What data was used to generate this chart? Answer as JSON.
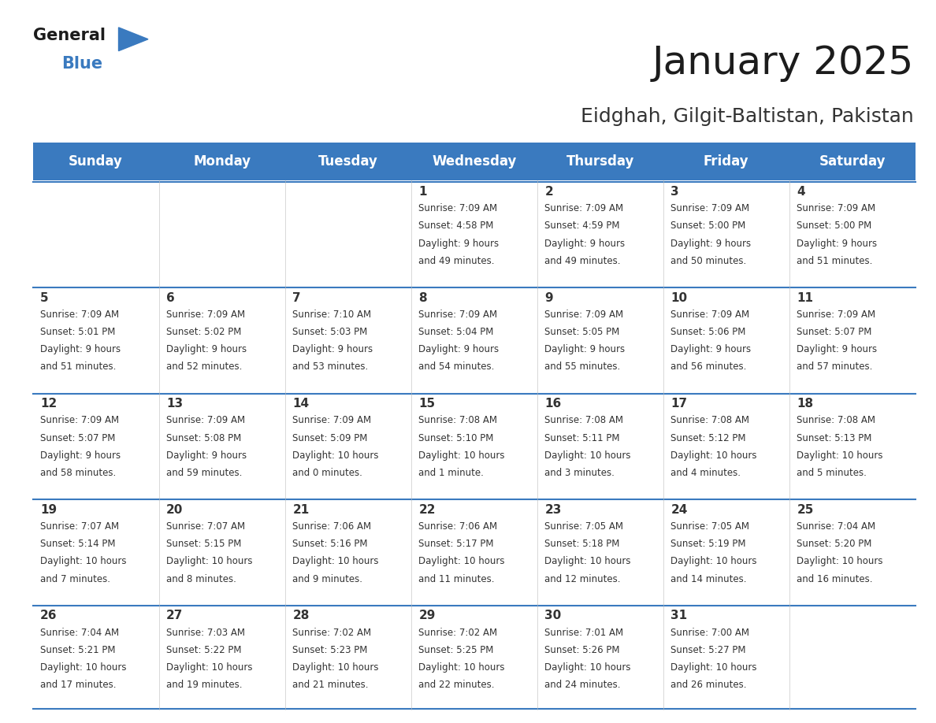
{
  "title": "January 2025",
  "subtitle": "Eidghah, Gilgit-Baltistan, Pakistan",
  "header_color": "#3a7abf",
  "header_text_color": "#ffffff",
  "cell_bg_color": "#ffffff",
  "text_color": "#333333",
  "border_color": "#3a7abf",
  "line_color": "#3a7abf",
  "days_of_week": [
    "Sunday",
    "Monday",
    "Tuesday",
    "Wednesday",
    "Thursday",
    "Friday",
    "Saturday"
  ],
  "calendar": [
    [
      {
        "day": "",
        "sunrise": "",
        "sunset": "",
        "daylight_h": "",
        "daylight_m": ""
      },
      {
        "day": "",
        "sunrise": "",
        "sunset": "",
        "daylight_h": "",
        "daylight_m": ""
      },
      {
        "day": "",
        "sunrise": "",
        "sunset": "",
        "daylight_h": "",
        "daylight_m": ""
      },
      {
        "day": "1",
        "sunrise": "7:09 AM",
        "sunset": "4:58 PM",
        "daylight_h": "9 hours",
        "daylight_m": "and 49 minutes."
      },
      {
        "day": "2",
        "sunrise": "7:09 AM",
        "sunset": "4:59 PM",
        "daylight_h": "9 hours",
        "daylight_m": "and 49 minutes."
      },
      {
        "day": "3",
        "sunrise": "7:09 AM",
        "sunset": "5:00 PM",
        "daylight_h": "9 hours",
        "daylight_m": "and 50 minutes."
      },
      {
        "day": "4",
        "sunrise": "7:09 AM",
        "sunset": "5:00 PM",
        "daylight_h": "9 hours",
        "daylight_m": "and 51 minutes."
      }
    ],
    [
      {
        "day": "5",
        "sunrise": "7:09 AM",
        "sunset": "5:01 PM",
        "daylight_h": "9 hours",
        "daylight_m": "and 51 minutes."
      },
      {
        "day": "6",
        "sunrise": "7:09 AM",
        "sunset": "5:02 PM",
        "daylight_h": "9 hours",
        "daylight_m": "and 52 minutes."
      },
      {
        "day": "7",
        "sunrise": "7:10 AM",
        "sunset": "5:03 PM",
        "daylight_h": "9 hours",
        "daylight_m": "and 53 minutes."
      },
      {
        "day": "8",
        "sunrise": "7:09 AM",
        "sunset": "5:04 PM",
        "daylight_h": "9 hours",
        "daylight_m": "and 54 minutes."
      },
      {
        "day": "9",
        "sunrise": "7:09 AM",
        "sunset": "5:05 PM",
        "daylight_h": "9 hours",
        "daylight_m": "and 55 minutes."
      },
      {
        "day": "10",
        "sunrise": "7:09 AM",
        "sunset": "5:06 PM",
        "daylight_h": "9 hours",
        "daylight_m": "and 56 minutes."
      },
      {
        "day": "11",
        "sunrise": "7:09 AM",
        "sunset": "5:07 PM",
        "daylight_h": "9 hours",
        "daylight_m": "and 57 minutes."
      }
    ],
    [
      {
        "day": "12",
        "sunrise": "7:09 AM",
        "sunset": "5:07 PM",
        "daylight_h": "9 hours",
        "daylight_m": "and 58 minutes."
      },
      {
        "day": "13",
        "sunrise": "7:09 AM",
        "sunset": "5:08 PM",
        "daylight_h": "9 hours",
        "daylight_m": "and 59 minutes."
      },
      {
        "day": "14",
        "sunrise": "7:09 AM",
        "sunset": "5:09 PM",
        "daylight_h": "10 hours",
        "daylight_m": "and 0 minutes."
      },
      {
        "day": "15",
        "sunrise": "7:08 AM",
        "sunset": "5:10 PM",
        "daylight_h": "10 hours",
        "daylight_m": "and 1 minute."
      },
      {
        "day": "16",
        "sunrise": "7:08 AM",
        "sunset": "5:11 PM",
        "daylight_h": "10 hours",
        "daylight_m": "and 3 minutes."
      },
      {
        "day": "17",
        "sunrise": "7:08 AM",
        "sunset": "5:12 PM",
        "daylight_h": "10 hours",
        "daylight_m": "and 4 minutes."
      },
      {
        "day": "18",
        "sunrise": "7:08 AM",
        "sunset": "5:13 PM",
        "daylight_h": "10 hours",
        "daylight_m": "and 5 minutes."
      }
    ],
    [
      {
        "day": "19",
        "sunrise": "7:07 AM",
        "sunset": "5:14 PM",
        "daylight_h": "10 hours",
        "daylight_m": "and 7 minutes."
      },
      {
        "day": "20",
        "sunrise": "7:07 AM",
        "sunset": "5:15 PM",
        "daylight_h": "10 hours",
        "daylight_m": "and 8 minutes."
      },
      {
        "day": "21",
        "sunrise": "7:06 AM",
        "sunset": "5:16 PM",
        "daylight_h": "10 hours",
        "daylight_m": "and 9 minutes."
      },
      {
        "day": "22",
        "sunrise": "7:06 AM",
        "sunset": "5:17 PM",
        "daylight_h": "10 hours",
        "daylight_m": "and 11 minutes."
      },
      {
        "day": "23",
        "sunrise": "7:05 AM",
        "sunset": "5:18 PM",
        "daylight_h": "10 hours",
        "daylight_m": "and 12 minutes."
      },
      {
        "day": "24",
        "sunrise": "7:05 AM",
        "sunset": "5:19 PM",
        "daylight_h": "10 hours",
        "daylight_m": "and 14 minutes."
      },
      {
        "day": "25",
        "sunrise": "7:04 AM",
        "sunset": "5:20 PM",
        "daylight_h": "10 hours",
        "daylight_m": "and 16 minutes."
      }
    ],
    [
      {
        "day": "26",
        "sunrise": "7:04 AM",
        "sunset": "5:21 PM",
        "daylight_h": "10 hours",
        "daylight_m": "and 17 minutes."
      },
      {
        "day": "27",
        "sunrise": "7:03 AM",
        "sunset": "5:22 PM",
        "daylight_h": "10 hours",
        "daylight_m": "and 19 minutes."
      },
      {
        "day": "28",
        "sunrise": "7:02 AM",
        "sunset": "5:23 PM",
        "daylight_h": "10 hours",
        "daylight_m": "and 21 minutes."
      },
      {
        "day": "29",
        "sunrise": "7:02 AM",
        "sunset": "5:25 PM",
        "daylight_h": "10 hours",
        "daylight_m": "and 22 minutes."
      },
      {
        "day": "30",
        "sunrise": "7:01 AM",
        "sunset": "5:26 PM",
        "daylight_h": "10 hours",
        "daylight_m": "and 24 minutes."
      },
      {
        "day": "31",
        "sunrise": "7:00 AM",
        "sunset": "5:27 PM",
        "daylight_h": "10 hours",
        "daylight_m": "and 26 minutes."
      },
      {
        "day": "",
        "sunrise": "",
        "sunset": "",
        "daylight_h": "",
        "daylight_m": ""
      }
    ]
  ],
  "logo_triangle_color": "#3a7abf",
  "title_fontsize": 36,
  "subtitle_fontsize": 18,
  "header_fontsize": 12,
  "day_num_fontsize": 11,
  "cell_text_fontsize": 8.5
}
